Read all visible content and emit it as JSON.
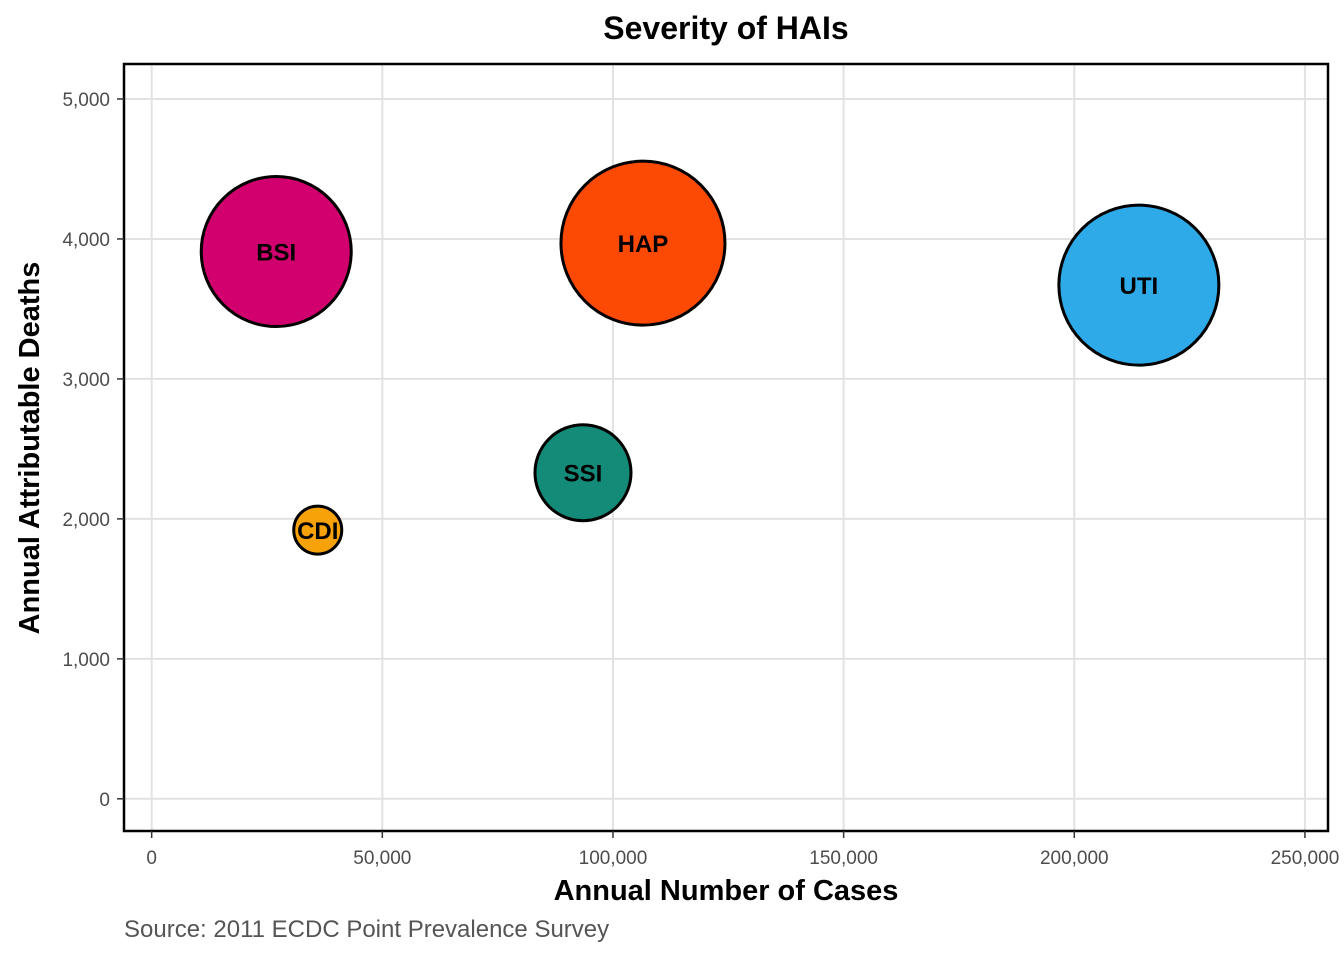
{
  "chart_data": {
    "type": "scatter",
    "title": "Severity of HAIs",
    "xlabel": "Annual Number of Cases",
    "ylabel": "Annual Attributable Deaths",
    "caption": "Source: 2011 ECDC Point Prevalence Survey",
    "xlim": [
      -6000,
      255000
    ],
    "ylim": [
      -230,
      5250
    ],
    "x_ticks": [
      0,
      50000,
      100000,
      150000,
      200000,
      250000
    ],
    "x_tick_labels": [
      "0",
      "50,000",
      "100,000",
      "150,000",
      "200,000",
      "250,000"
    ],
    "y_ticks": [
      0,
      1000,
      2000,
      3000,
      4000,
      5000
    ],
    "y_tick_labels": [
      "0",
      "1,000",
      "2,000",
      "3,000",
      "4,000",
      "5,000"
    ],
    "grid": true,
    "legend": "none",
    "points": [
      {
        "label": "BSI",
        "x": 27000,
        "y": 3910,
        "relative_size": 75,
        "color": "#d1006e"
      },
      {
        "label": "HAP",
        "x": 106500,
        "y": 3970,
        "relative_size": 82,
        "color": "#fc4a05"
      },
      {
        "label": "UTI",
        "x": 214000,
        "y": 3670,
        "relative_size": 80,
        "color": "#2eaae8"
      },
      {
        "label": "SSI",
        "x": 93500,
        "y": 2330,
        "relative_size": 48,
        "color": "#148a78"
      },
      {
        "label": "CDI",
        "x": 36000,
        "y": 1920,
        "relative_size": 24,
        "color": "#f8a20a"
      }
    ]
  }
}
